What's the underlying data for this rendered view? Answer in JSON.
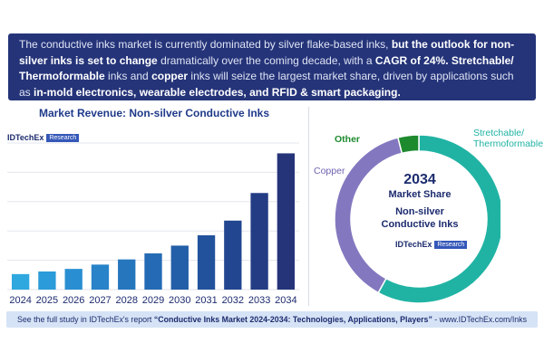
{
  "banner": {
    "p1": "The conductive inks market is currently dominated by silver flake-based inks, ",
    "b1": "but the outlook for non-silver inks is set to change",
    "p2": " dramatically over the coming decade, with a ",
    "b2": "CAGR of 24%.",
    "p3": " ",
    "b3": "Stretchable/ Thermoformable",
    "p4": " inks and ",
    "b4": "copper",
    "p5": " inks will seize the largest market share, driven by applications such as ",
    "b5": "in-mold electronics, wearable electrodes, and RFID & smart packaging."
  },
  "brand": {
    "name": "IDTechEx",
    "tag": "Research"
  },
  "chart_data": [
    {
      "type": "bar",
      "title": "Market Revenue: Non-silver Conductive Inks",
      "categories": [
        "2024",
        "2025",
        "2026",
        "2027",
        "2028",
        "2029",
        "2030",
        "2031",
        "2032",
        "2033",
        "2034"
      ],
      "values": [
        18,
        21,
        24,
        29,
        35,
        42,
        51,
        63,
        80,
        112,
        158
      ],
      "ylim": [
        0,
        170
      ],
      "grid": true,
      "colors": [
        "#2fa8e0",
        "#2b9bd9",
        "#2a8fd2",
        "#2883c8",
        "#2676be",
        "#246ab4",
        "#235ea8",
        "#22529c",
        "#224690",
        "#233c84",
        "#253479"
      ]
    },
    {
      "type": "pie",
      "year": "2034",
      "center_text": "Market Share Non-silver Conductive Inks",
      "slices": [
        {
          "label": "Stretchable/ Thermoformable",
          "value": 58,
          "color": "#20b3a4"
        },
        {
          "label": "Copper",
          "value": 38,
          "color": "#8378bf"
        },
        {
          "label": "Other",
          "value": 4,
          "color": "#1e8a2e"
        }
      ]
    }
  ],
  "donut": {
    "year": "2034",
    "line1": "Market Share",
    "line2": "Non-silver",
    "line3": "Conductive Inks"
  },
  "footer": {
    "pre": "See the full study in IDTechEx's report ",
    "bold": "“Conductive Inks Market 2024-2034: Technologies, Applications, Players”",
    "post": " - www.IDTechEx.com/Inks"
  }
}
